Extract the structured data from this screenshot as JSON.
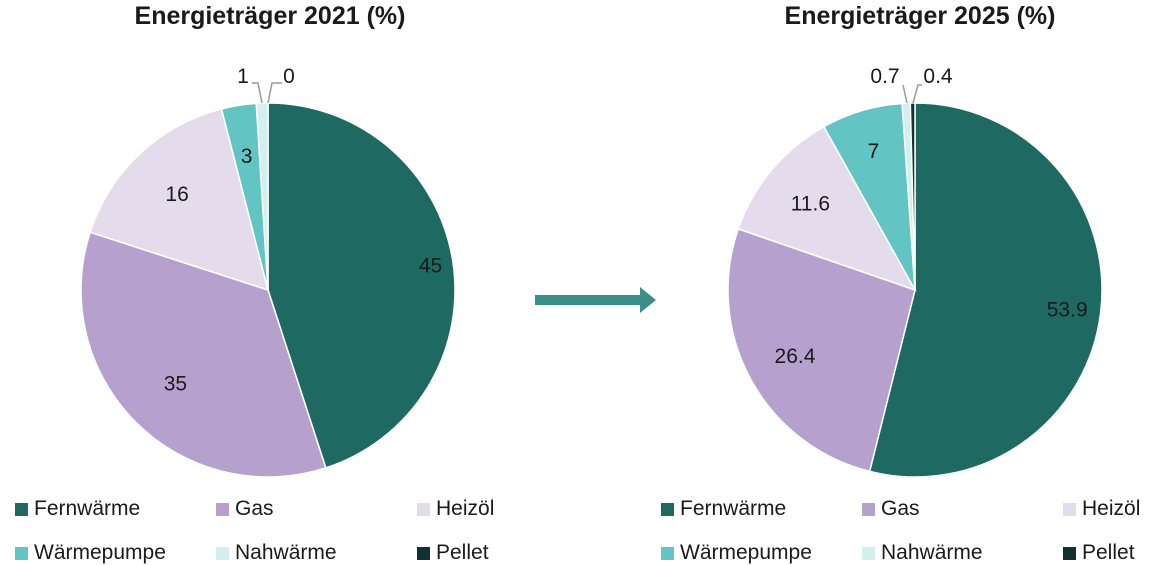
{
  "chart_data": [
    {
      "type": "pie",
      "title": "Energieträger 2021 (%)",
      "categories": [
        "Fernwärme",
        "Gas",
        "Heizöl",
        "Wärmepumpe",
        "Nahwärme",
        "Pellet"
      ],
      "values": [
        45,
        35,
        16,
        3,
        1,
        0
      ],
      "labels": [
        "45",
        "35",
        "16",
        "3",
        "1",
        "0"
      ],
      "colors": [
        "#1e6a63",
        "#b6a0cd",
        "#e4dcec",
        "#62c4c3",
        "#d3f0ee",
        "#143131"
      ],
      "legend": "bottom"
    },
    {
      "type": "pie",
      "title": "Energieträger 2025 (%)",
      "categories": [
        "Fernwärme",
        "Gas",
        "Heizöl",
        "Wärmepumpe",
        "Nahwärme",
        "Pellet"
      ],
      "values": [
        53.9,
        26.4,
        11.6,
        7,
        0.7,
        0.4
      ],
      "labels": [
        "53.9",
        "26.4",
        "11.6",
        "7",
        "0.7",
        "0.4"
      ],
      "colors": [
        "#1e6a63",
        "#b6a0cd",
        "#e4dcec",
        "#62c4c3",
        "#d3f0ee",
        "#143131"
      ],
      "legend": "bottom"
    }
  ],
  "arrow_color": "#3a8f8b"
}
